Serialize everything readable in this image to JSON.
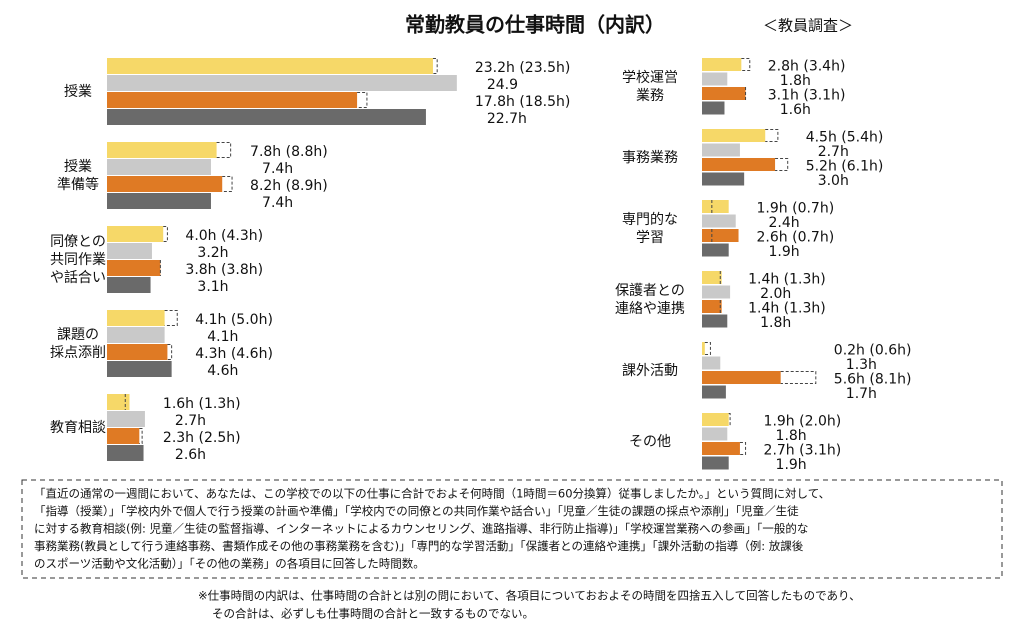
{
  "header": {
    "title": "常勤教員の仕事時間（内訳）",
    "subtitle": "＜教員調査＞"
  },
  "chart_data": [
    {
      "type": "bar",
      "orientation": "horizontal",
      "categories": [
        [
          "授業"
        ],
        [
          "授業",
          "準備等"
        ],
        [
          "同僚との",
          "共同作業",
          "や話合い"
        ],
        [
          "課題の",
          "採点添削"
        ],
        [
          "教育相談"
        ]
      ],
      "series": [
        {
          "color": "#f6d868",
          "values": [
            23.2,
            7.8,
            4.0,
            4.1,
            1.6
          ],
          "dashed_values": [
            23.5,
            8.8,
            4.3,
            5.0,
            1.3
          ],
          "value_labels": [
            "23.2h (23.5h)",
            "7.8h (8.8h)",
            "4.0h (4.3h)",
            "4.1h (5.0h)",
            "1.6h (1.3h)"
          ]
        },
        {
          "color": "#c9c9c9",
          "values": [
            24.9,
            7.4,
            3.2,
            4.1,
            2.7
          ],
          "value_labels": [
            "24.9",
            "7.4h",
            "3.2h",
            "4.1h",
            "2.7h"
          ]
        },
        {
          "color": "#df7a24",
          "values": [
            17.8,
            8.2,
            3.8,
            4.3,
            2.3
          ],
          "dashed_values": [
            18.5,
            8.9,
            3.8,
            4.6,
            2.5
          ],
          "value_labels": [
            "17.8h (18.5h)",
            "8.2h (8.9h)",
            "3.8h (3.8h)",
            "4.3h (4.6h)",
            "2.3h (2.5h)"
          ]
        },
        {
          "color": "#6a6a6a",
          "values": [
            22.7,
            7.4,
            3.1,
            4.6,
            2.6
          ],
          "value_labels": [
            "22.7h",
            "7.4h",
            "3.1h",
            "4.6h",
            "2.6h"
          ]
        }
      ]
    },
    {
      "type": "bar",
      "orientation": "horizontal",
      "categories": [
        [
          "学校運営",
          "業務"
        ],
        [
          "事務業務"
        ],
        [
          "専門的な",
          "学習"
        ],
        [
          "保護者との",
          "連絡や連携"
        ],
        [
          "課外活動"
        ],
        [
          "その他"
        ]
      ],
      "series": [
        {
          "color": "#f6d868",
          "values": [
            2.8,
            4.5,
            1.9,
            1.4,
            0.2,
            1.9
          ],
          "dashed_values": [
            3.4,
            5.4,
            0.7,
            1.3,
            0.6,
            2.0
          ],
          "value_labels": [
            "2.8h (3.4h)",
            "4.5h (5.4h)",
            "1.9h (0.7h)",
            "1.4h (1.3h)",
            "0.2h (0.6h)",
            "1.9h (2.0h)"
          ]
        },
        {
          "color": "#c9c9c9",
          "values": [
            1.8,
            2.7,
            2.4,
            2.0,
            1.3,
            1.8
          ],
          "value_labels": [
            "1.8h",
            "2.7h",
            "2.4h",
            "2.0h",
            "1.3h",
            "1.8h"
          ]
        },
        {
          "color": "#df7a24",
          "values": [
            3.1,
            5.2,
            2.6,
            1.4,
            5.6,
            2.7
          ],
          "dashed_values": [
            3.1,
            6.1,
            0.7,
            1.3,
            8.1,
            3.1
          ],
          "value_labels": [
            "3.1h (3.1h)",
            "5.2h (6.1h)",
            "2.6h (0.7h)",
            "1.4h (1.3h)",
            "5.6h (8.1h)",
            "2.7h (3.1h)"
          ]
        },
        {
          "color": "#6a6a6a",
          "values": [
            1.6,
            3.0,
            1.9,
            1.8,
            1.7,
            1.9
          ],
          "value_labels": [
            "1.6h",
            "3.0h",
            "1.9h",
            "1.8h",
            "1.7h",
            "1.9h"
          ]
        }
      ]
    }
  ],
  "notes": {
    "box": [
      "「直近の通常の一週間において、あなたは、この学校での以下の仕事に合計でおよそ何時間（1時間＝60分換算）従事しましたか。」という質問に対して、",
      "「指導（授業）」「学校内外で個人で行う授業の計画や準備」「学校内での同僚との共同作業や話合い」「児童／生徒の課題の採点や添削」「児童／生徒",
      "に対する教育相談(例: 児童／生徒の監督指導、インターネットによるカウンセリング、進路指導、非行防止指導)」「学校運営業務への参画」「一般的な",
      "事務業務(教員として行う連絡事務、書類作成その他の事務業務を含む)」「専門的な学習活動」「保護者との連絡や連携」「課外活動の指導（例: 放課後",
      "のスポーツ活動や文化活動）」「その他の業務」の各項目に回答した時間数。"
    ],
    "footnote": [
      "※仕事時間の内訳は、仕事時間の合計とは別の問において、各項目についておおよその時間を四捨五入して回答したものであり、",
      "その合計は、必ずしも仕事時間の合計と一致するものでない。"
    ]
  }
}
